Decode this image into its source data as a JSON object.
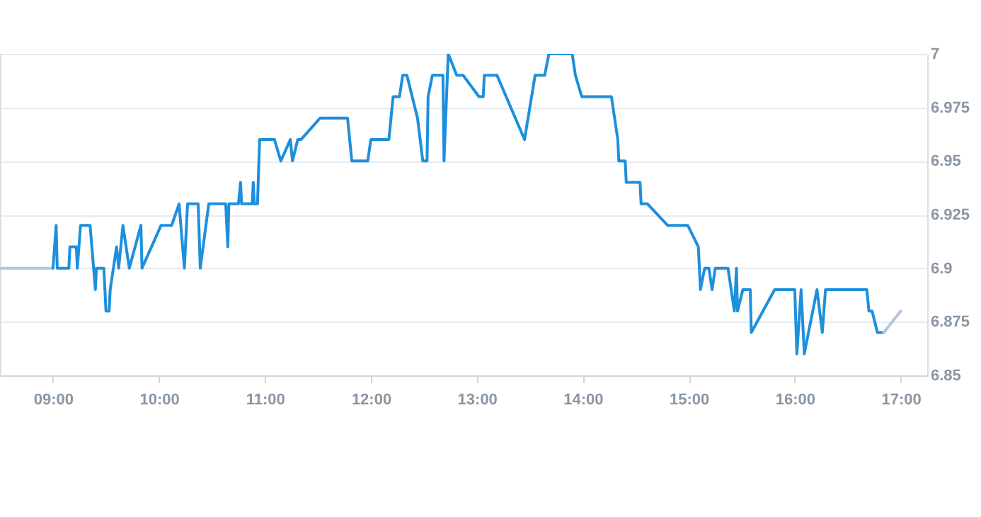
{
  "chart_data": {
    "type": "line",
    "xlim": [
      8.5,
      17.25
    ],
    "ylim": [
      6.85,
      7.0
    ],
    "xticks": [
      {
        "value": 9,
        "label": "09:00"
      },
      {
        "value": 10,
        "label": "10:00"
      },
      {
        "value": 11,
        "label": "11:00"
      },
      {
        "value": 12,
        "label": "12:00"
      },
      {
        "value": 13,
        "label": "13:00"
      },
      {
        "value": 14,
        "label": "14:00"
      },
      {
        "value": 15,
        "label": "15:00"
      },
      {
        "value": 16,
        "label": "16:00"
      },
      {
        "value": 17,
        "label": "17:00"
      }
    ],
    "yticks": [
      6.85,
      6.875,
      6.9,
      6.925,
      6.95,
      6.975,
      {
        "value": 7.0,
        "label": "7"
      }
    ],
    "grid": "y",
    "legend": false,
    "marker": "none",
    "line_style": "solid",
    "series": [
      {
        "color": "#b4c6d8",
        "x": [
          8.5,
          9.0
        ],
        "values": [
          6.9,
          6.9
        ]
      },
      {
        "color": "#1e8fdc",
        "x": [
          9.0,
          9.03,
          9.04,
          9.15,
          9.16,
          9.22,
          9.23,
          9.26,
          9.35,
          9.4,
          9.41,
          9.48,
          9.5,
          9.53,
          9.54,
          9.6,
          9.62,
          9.66,
          9.72,
          9.83,
          9.84,
          10.02,
          10.12,
          10.19,
          10.24,
          10.27,
          10.37,
          10.39,
          10.47,
          10.63,
          10.65,
          10.66,
          10.75,
          10.77,
          10.78,
          10.88,
          10.89,
          10.9,
          10.93,
          10.95,
          11.09,
          11.15,
          11.24,
          11.26,
          11.31,
          11.34,
          11.52,
          11.78,
          11.82,
          11.97,
          12.0,
          12.17,
          12.21,
          12.27,
          12.3,
          12.34,
          12.44,
          12.49,
          12.53,
          12.54,
          12.58,
          12.68,
          12.69,
          12.73,
          12.81,
          12.87,
          13.02,
          13.06,
          13.07,
          13.19,
          13.45,
          13.55,
          13.64,
          13.68,
          13.9,
          13.93,
          13.99,
          14.27,
          14.33,
          14.34,
          14.4,
          14.41,
          14.54,
          14.55,
          14.61,
          14.8,
          14.99,
          15.09,
          15.11,
          15.15,
          15.19,
          15.22,
          15.25,
          15.37,
          15.43,
          15.45,
          15.46,
          15.51,
          15.58,
          15.59,
          15.81,
          16.0,
          16.02,
          16.06,
          16.09,
          16.21,
          16.26,
          16.29,
          16.68,
          16.7,
          16.73,
          16.78,
          16.84
        ],
        "values": [
          6.9,
          6.92,
          6.9,
          6.9,
          6.91,
          6.91,
          6.9,
          6.92,
          6.92,
          6.89,
          6.9,
          6.9,
          6.88,
          6.88,
          6.89,
          6.91,
          6.9,
          6.92,
          6.9,
          6.92,
          6.9,
          6.92,
          6.92,
          6.93,
          6.9,
          6.93,
          6.93,
          6.9,
          6.93,
          6.93,
          6.91,
          6.93,
          6.93,
          6.94,
          6.93,
          6.93,
          6.94,
          6.93,
          6.93,
          6.96,
          6.96,
          6.95,
          6.96,
          6.95,
          6.96,
          6.96,
          6.97,
          6.97,
          6.95,
          6.95,
          6.96,
          6.96,
          6.98,
          6.98,
          6.99,
          6.99,
          6.97,
          6.95,
          6.95,
          6.98,
          6.99,
          6.99,
          6.95,
          7.0,
          6.99,
          6.99,
          6.98,
          6.98,
          6.99,
          6.99,
          6.96,
          6.99,
          6.99,
          7.0,
          7.0,
          6.99,
          6.98,
          6.98,
          6.96,
          6.95,
          6.95,
          6.94,
          6.94,
          6.93,
          6.93,
          6.92,
          6.92,
          6.91,
          6.89,
          6.9,
          6.9,
          6.89,
          6.9,
          6.9,
          6.88,
          6.9,
          6.88,
          6.89,
          6.89,
          6.87,
          6.89,
          6.89,
          6.86,
          6.89,
          6.86,
          6.89,
          6.87,
          6.89,
          6.89,
          6.88,
          6.88,
          6.87,
          6.87
        ]
      },
      {
        "color": "#b4c6d8",
        "x": [
          16.84,
          17.0
        ],
        "values": [
          6.87,
          6.88
        ]
      }
    ]
  }
}
